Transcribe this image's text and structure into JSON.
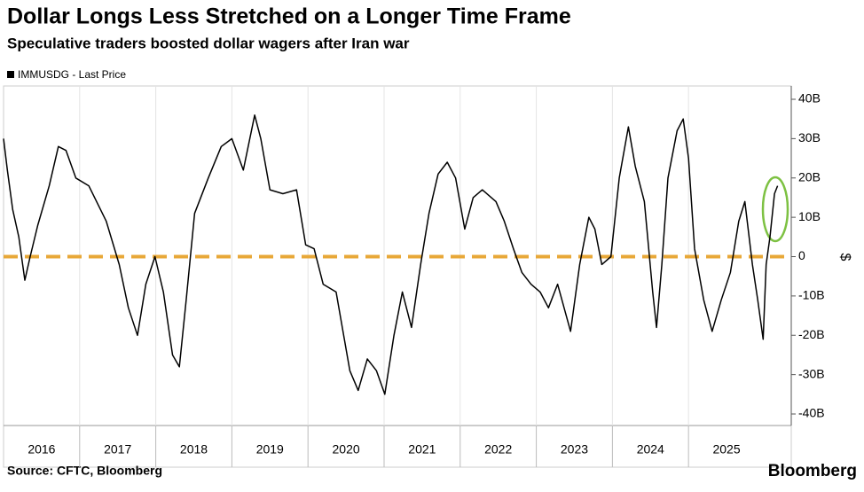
{
  "chart_data": {
    "type": "line",
    "title": "Dollar Longs Less Stretched on a Longer Time Frame",
    "subtitle": "Speculative traders boosted dollar wagers after Iran war",
    "source": "Source: CFTC, Bloomberg",
    "brand": "Bloomberg",
    "y_axis_label": "$",
    "xlim": [
      2016,
      2026.35
    ],
    "xticks": [
      2016,
      2017,
      2018,
      2019,
      2020,
      2021,
      2022,
      2023,
      2024,
      2025
    ],
    "ylim": [
      -44,
      40
    ],
    "yticks": [
      {
        "value": 40,
        "label": "40B"
      },
      {
        "value": 30,
        "label": "30B"
      },
      {
        "value": 20,
        "label": "20B"
      },
      {
        "value": 10,
        "label": "10B"
      },
      0,
      {
        "value": -10,
        "label": "-10B"
      },
      {
        "value": -20,
        "label": "-20B"
      },
      {
        "value": -30,
        "label": "-30B"
      },
      {
        "value": -40,
        "label": "-40B"
      }
    ],
    "reference_line": {
      "value": 0,
      "color": "#e8a838"
    },
    "series": [
      {
        "name": "IMMUSDG - Last Price",
        "color": "#000000",
        "x": [
          2016.0,
          2016.05,
          2016.12,
          2016.2,
          2016.28,
          2016.35,
          2016.45,
          2016.6,
          2016.72,
          2016.82,
          2016.95,
          2017.12,
          2017.35,
          2017.52,
          2017.64,
          2017.76,
          2017.87,
          2017.99,
          2018.1,
          2018.22,
          2018.31,
          2018.4,
          2018.51,
          2018.69,
          2018.86,
          2019.0,
          2019.15,
          2019.3,
          2019.38,
          2019.5,
          2019.67,
          2019.85,
          2019.97,
          2020.08,
          2020.2,
          2020.37,
          2020.55,
          2020.66,
          2020.78,
          2020.9,
          2021.01,
          2021.13,
          2021.24,
          2021.36,
          2021.48,
          2021.59,
          2021.71,
          2021.83,
          2021.94,
          2022.06,
          2022.17,
          2022.29,
          2022.47,
          2022.58,
          2022.7,
          2022.81,
          2022.93,
          2023.05,
          2023.16,
          2023.28,
          2023.45,
          2023.57,
          2023.69,
          2023.77,
          2023.86,
          2023.98,
          2024.09,
          2024.21,
          2024.3,
          2024.42,
          2024.53,
          2024.58,
          2024.65,
          2024.73,
          2024.85,
          2024.93,
          2025.0,
          2025.08,
          2025.2,
          2025.31,
          2025.43,
          2025.55,
          2025.66,
          2025.74,
          2025.84,
          2025.91,
          2025.98,
          2026.02,
          2026.07,
          2026.13,
          2026.17
        ],
        "values": [
          30,
          22,
          12,
          5,
          -6,
          0,
          8,
          18,
          28,
          27,
          20,
          18,
          9,
          -2,
          -13,
          -20,
          -7,
          0,
          -9,
          -25,
          -28,
          -11,
          11,
          20,
          28,
          30,
          22,
          36,
          30,
          17,
          16,
          17,
          3,
          2,
          -7,
          -9,
          -29,
          -34,
          -26,
          -29,
          -35,
          -20,
          -9,
          -18,
          -2,
          11,
          21,
          24,
          20,
          7,
          15,
          17,
          14,
          9,
          2,
          -4,
          -7,
          -9,
          -13,
          -7,
          -19,
          -2,
          10,
          7,
          -2,
          0,
          20,
          33,
          23,
          14,
          -9,
          -18,
          -2,
          20,
          32,
          35,
          25,
          2,
          -11,
          -19,
          -11,
          -4,
          9,
          14,
          -2,
          -11,
          -21,
          -2,
          5,
          16,
          18
        ]
      }
    ]
  }
}
